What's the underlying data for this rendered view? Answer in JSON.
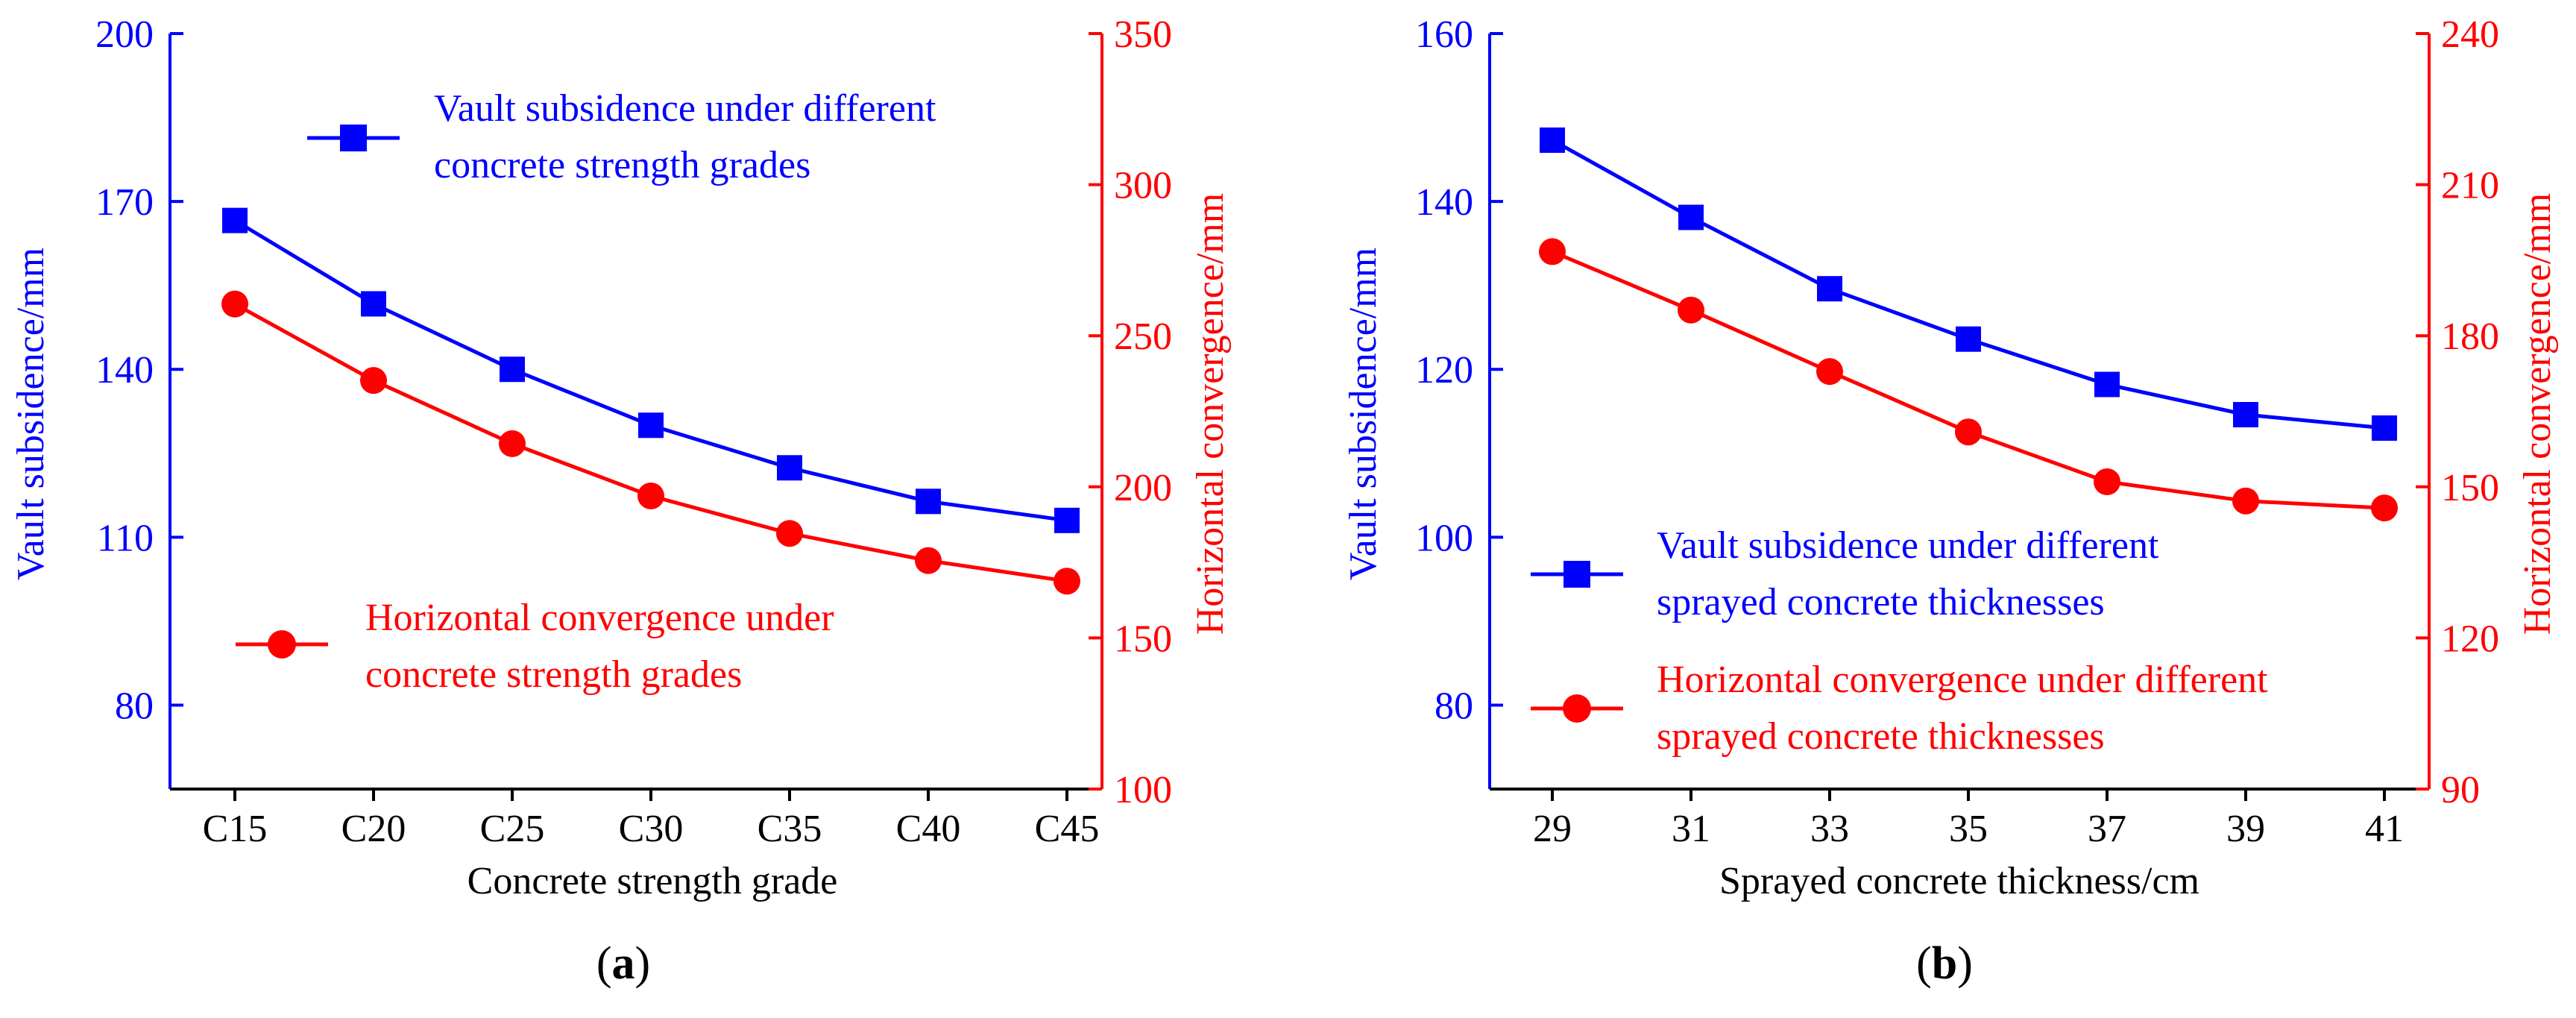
{
  "colors": {
    "blue": "#0000ff",
    "red": "#ff0000",
    "axis": "#000000",
    "text": "#000000"
  },
  "chart_data": [
    {
      "id": "a",
      "type": "line",
      "panel_label": "(a)",
      "panel_letter": "a",
      "xlabel": "Concrete strength grade",
      "categories": [
        "C15",
        "C20",
        "C25",
        "C30",
        "C35",
        "C40",
        "C45"
      ],
      "y_left": {
        "label": "Vault subsidence/mm",
        "range": [
          65,
          200
        ],
        "ticks": [
          80,
          110,
          140,
          170,
          200
        ],
        "tick_labels": [
          "80",
          "110",
          "140",
          "170",
          "200"
        ]
      },
      "y_right": {
        "label": "Horizontal convergence/mm",
        "range": [
          100,
          350
        ],
        "ticks": [
          100,
          150,
          200,
          250,
          300,
          350
        ],
        "tick_labels": [
          "100",
          "150",
          "200",
          "250",
          "300",
          "350"
        ]
      },
      "series": [
        {
          "name": "Vault subsidence under different concrete strength grades",
          "legend_lines": [
            "Vault subsidence under different",
            "concrete strength grades"
          ],
          "axis": "left",
          "color": "#0000ff",
          "marker": "square",
          "values": [
            166.6,
            151.7,
            140.0,
            130.0,
            122.4,
            116.4,
            113.0
          ]
        },
        {
          "name": "Horizontal convergence under concrete strength grades",
          "legend_lines": [
            "Horizontal convergence under",
            "concrete strength grades"
          ],
          "axis": "right",
          "color": "#ff0000",
          "marker": "circle",
          "values": [
            260.5,
            235.2,
            214.3,
            197.0,
            184.6,
            175.6,
            168.8
          ]
        }
      ]
    },
    {
      "id": "b",
      "type": "line",
      "panel_label": "(b)",
      "panel_letter": "b",
      "xlabel": "Sprayed concrete thickness/cm",
      "categories": [
        "29",
        "31",
        "33",
        "35",
        "37",
        "39",
        "41"
      ],
      "y_left": {
        "label": "Vault subsidence/mm",
        "range": [
          70,
          160
        ],
        "ticks": [
          80,
          100,
          120,
          140,
          160
        ],
        "tick_labels": [
          "80",
          "100",
          "120",
          "140",
          "160"
        ]
      },
      "y_right": {
        "label": "Horizontal convergence/mm",
        "range": [
          90,
          240
        ],
        "ticks": [
          90,
          120,
          150,
          180,
          210,
          240
        ],
        "tick_labels": [
          "90",
          "120",
          "150",
          "180",
          "210",
          "240"
        ]
      },
      "series": [
        {
          "name": "Vault subsidence under different sprayed concrete thicknesses",
          "legend_lines": [
            "Vault subsidence under different",
            "sprayed concrete thicknesses"
          ],
          "axis": "left",
          "color": "#0000ff",
          "marker": "square",
          "values": [
            147.3,
            138.1,
            129.6,
            123.6,
            118.2,
            114.6,
            113.0
          ]
        },
        {
          "name": "Horizontal convergence under different sprayed concrete thicknesses",
          "legend_lines": [
            "Horizontal convergence under different",
            "sprayed concrete thicknesses"
          ],
          "axis": "right",
          "color": "#ff0000",
          "marker": "circle",
          "values": [
            196.7,
            185.1,
            172.9,
            160.9,
            151.0,
            147.2,
            145.8
          ]
        }
      ]
    }
  ]
}
